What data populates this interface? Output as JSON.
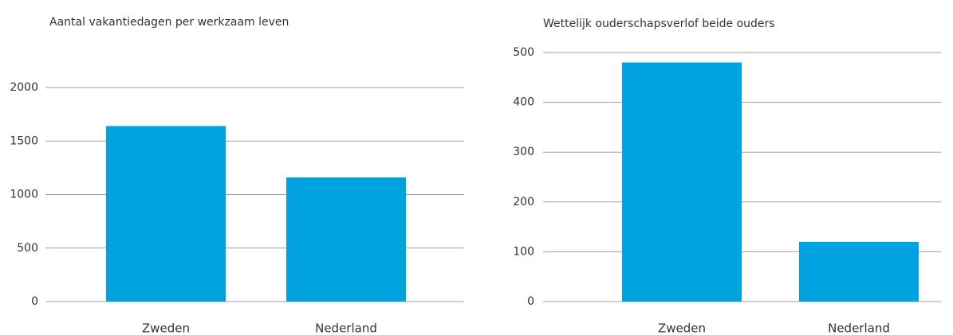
{
  "chart_data": [
    {
      "type": "bar",
      "title": "Aantal vakantiedagen per werkzaam leven",
      "categories": [
        "Zweden",
        "Nederland"
      ],
      "values": [
        1640,
        1160
      ],
      "color": "#00a3e0",
      "ylim": [
        0,
        2000
      ],
      "yticks": [
        0,
        500,
        1000,
        1500,
        2000
      ],
      "grid": true
    },
    {
      "type": "bar",
      "title": "Wettelijk ouderschapsverlof beide ouders",
      "categories": [
        "Zweden",
        "Nederland"
      ],
      "values": [
        480,
        120
      ],
      "color": "#00a3e0",
      "ylim": [
        0,
        500
      ],
      "yticks": [
        0,
        100,
        200,
        300,
        400,
        500
      ],
      "grid": true
    }
  ]
}
